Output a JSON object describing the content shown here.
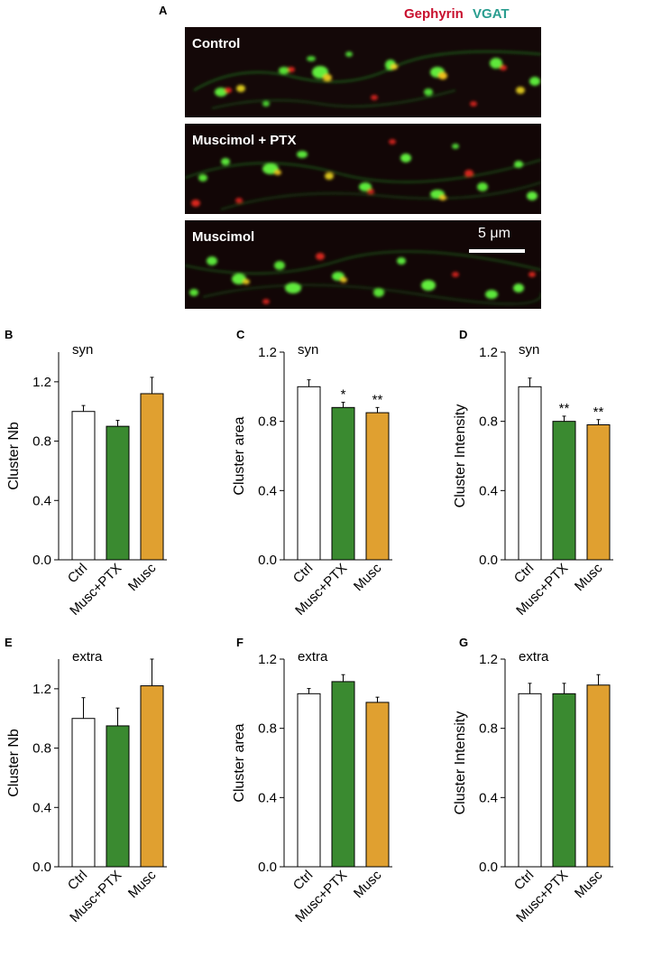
{
  "figure": {
    "panel_letters": [
      "A",
      "B",
      "C",
      "D",
      "E",
      "F",
      "G"
    ],
    "legend": {
      "gephyrin": "Gephyrin",
      "vgat": "VGAT"
    },
    "micrograph_labels": [
      "Control",
      "Muscimol + PTX",
      "Muscimol"
    ],
    "scale_bar_label": "5 μm",
    "colors": {
      "gephyrin": "#c8102e",
      "vgat": "#2a9d8f",
      "ctrl": "#ffffff",
      "musc_ptx": "#3a8a30",
      "musc": "#e0a030"
    }
  },
  "chart_data": [
    {
      "panel": "B",
      "type": "bar",
      "title": "syn",
      "ylabel": "Cluster Nb",
      "categories": [
        "Ctrl",
        "Musc+PTX",
        "Musc"
      ],
      "values": [
        1.0,
        0.9,
        1.12
      ],
      "errors": [
        0.04,
        0.04,
        0.11
      ],
      "significance": [
        "",
        "",
        ""
      ],
      "ylim": [
        0,
        1.4
      ],
      "yticks": [
        "0.0",
        "0.4",
        "0.8",
        "1.2"
      ]
    },
    {
      "panel": "C",
      "type": "bar",
      "title": "syn",
      "ylabel": "Cluster area",
      "categories": [
        "Ctrl",
        "Musc+PTX",
        "Musc"
      ],
      "values": [
        1.0,
        0.88,
        0.85
      ],
      "errors": [
        0.04,
        0.03,
        0.03
      ],
      "significance": [
        "",
        "*",
        "**"
      ],
      "ylim": [
        0,
        1.2
      ],
      "yticks": [
        "0.0",
        "0.4",
        "0.8",
        "1.2"
      ]
    },
    {
      "panel": "D",
      "type": "bar",
      "title": "syn",
      "ylabel": "Cluster Intensity",
      "categories": [
        "Ctrl",
        "Musc+PTX",
        "Musc"
      ],
      "values": [
        1.0,
        0.8,
        0.78
      ],
      "errors": [
        0.05,
        0.03,
        0.03
      ],
      "significance": [
        "",
        "**",
        "**"
      ],
      "ylim": [
        0,
        1.2
      ],
      "yticks": [
        "0.0",
        "0.4",
        "0.8",
        "1.2"
      ]
    },
    {
      "panel": "E",
      "type": "bar",
      "title": "extra",
      "ylabel": "Cluster Nb",
      "categories": [
        "Ctrl",
        "Musc+PTX",
        "Musc"
      ],
      "values": [
        1.0,
        0.95,
        1.22
      ],
      "errors": [
        0.14,
        0.12,
        0.18
      ],
      "significance": [
        "",
        "",
        ""
      ],
      "ylim": [
        0,
        1.4
      ],
      "yticks": [
        "0.0",
        "0.4",
        "0.8",
        "1.2"
      ]
    },
    {
      "panel": "F",
      "type": "bar",
      "title": "extra",
      "ylabel": "Cluster area",
      "categories": [
        "Ctrl",
        "Musc+PTX",
        "Musc"
      ],
      "values": [
        1.0,
        1.07,
        0.95
      ],
      "errors": [
        0.03,
        0.04,
        0.03
      ],
      "significance": [
        "",
        "",
        ""
      ],
      "ylim": [
        0,
        1.2
      ],
      "yticks": [
        "0.0",
        "0.4",
        "0.8",
        "1.2"
      ]
    },
    {
      "panel": "G",
      "type": "bar",
      "title": "extra",
      "ylabel": "Cluster Intensity",
      "categories": [
        "Ctrl",
        "Musc+PTX",
        "Musc"
      ],
      "values": [
        1.0,
        1.0,
        1.05
      ],
      "errors": [
        0.06,
        0.06,
        0.06
      ],
      "significance": [
        "",
        "",
        ""
      ],
      "ylim": [
        0,
        1.2
      ],
      "yticks": [
        "0.0",
        "0.4",
        "0.8",
        "1.2"
      ]
    }
  ]
}
